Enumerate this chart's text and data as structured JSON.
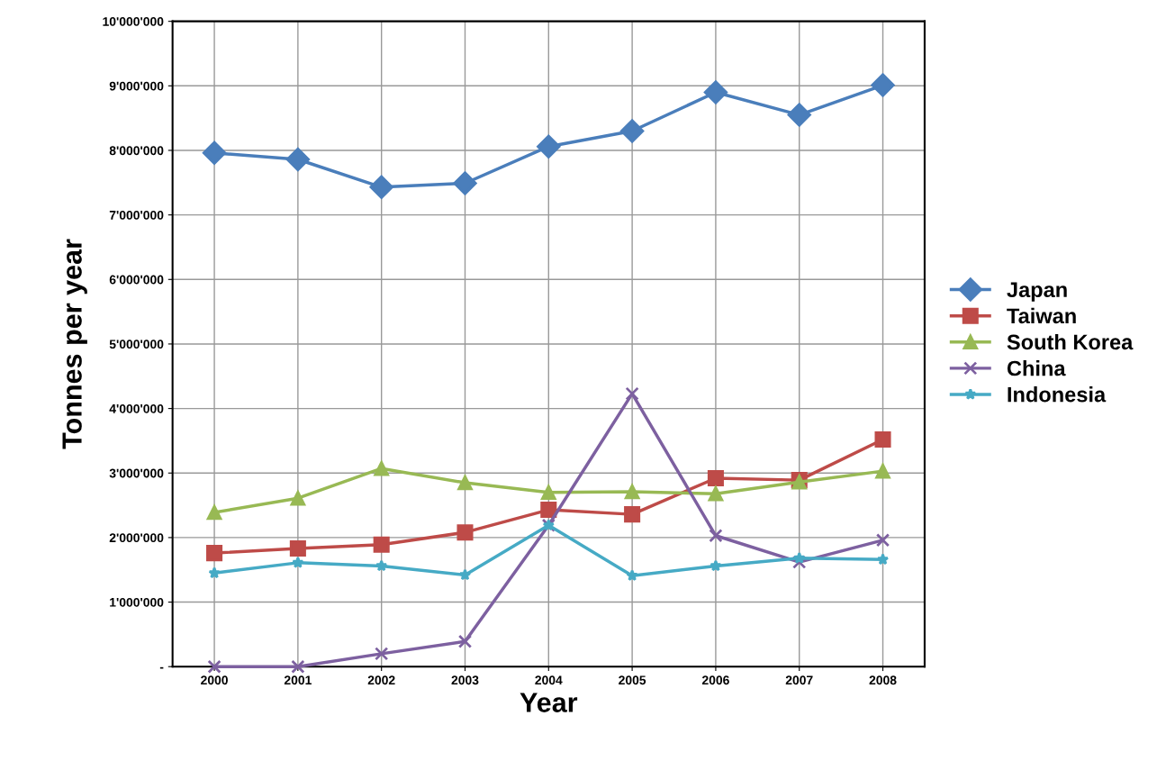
{
  "chart_data": {
    "type": "line",
    "xlabel": "Year",
    "ylabel": "Tonnes per year",
    "categories": [
      "2000",
      "2001",
      "2002",
      "2003",
      "2004",
      "2005",
      "2006",
      "2007",
      "2008"
    ],
    "series": [
      {
        "name": "Japan",
        "color": "#4a7ebb",
        "marker": "diamond",
        "values": [
          7960000,
          7860000,
          7430000,
          7490000,
          8060000,
          8300000,
          8900000,
          8550000,
          9010000
        ]
      },
      {
        "name": "Taiwan",
        "color": "#be4b48",
        "marker": "square",
        "values": [
          1760000,
          1830000,
          1890000,
          2080000,
          2430000,
          2360000,
          2920000,
          2890000,
          3520000
        ]
      },
      {
        "name": "South Korea",
        "color": "#98b954",
        "marker": "triangle",
        "values": [
          2390000,
          2610000,
          3070000,
          2850000,
          2700000,
          2710000,
          2680000,
          2860000,
          3030000
        ]
      },
      {
        "name": "China",
        "color": "#7d60a0",
        "marker": "cross",
        "values": [
          0,
          0,
          200000,
          390000,
          2190000,
          4230000,
          2030000,
          1620000,
          1960000
        ]
      },
      {
        "name": "Indonesia",
        "color": "#46aac5",
        "marker": "star",
        "values": [
          1450000,
          1610000,
          1560000,
          1420000,
          2190000,
          1410000,
          1560000,
          1680000,
          1660000
        ]
      }
    ],
    "ylim": [
      0,
      10000000
    ],
    "yticks": [
      {
        "value": 0,
        "label": "-"
      },
      {
        "value": 1000000,
        "label": "1'000'000"
      },
      {
        "value": 2000000,
        "label": "2'000'000"
      },
      {
        "value": 3000000,
        "label": "3'000'000"
      },
      {
        "value": 4000000,
        "label": "4'000'000"
      },
      {
        "value": 5000000,
        "label": "5'000'000"
      },
      {
        "value": 6000000,
        "label": "6'000'000"
      },
      {
        "value": 7000000,
        "label": "7'000'000"
      },
      {
        "value": 8000000,
        "label": "8'000'000"
      },
      {
        "value": 9000000,
        "label": "9'000'000"
      },
      {
        "value": 10000000,
        "label": "10'000'000"
      }
    ],
    "grid": true,
    "legend": "right",
    "line_style": "solid"
  }
}
